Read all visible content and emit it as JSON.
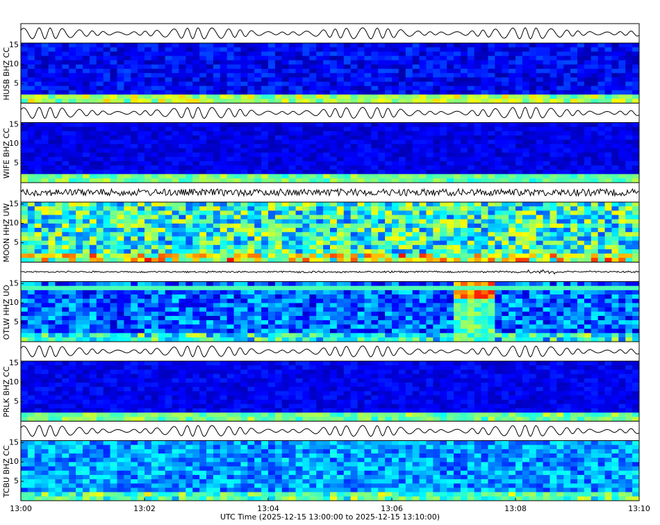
{
  "chart_data": {
    "type": "spectrogram",
    "xlabel": "UTC Time (2025-12-15 13:00:00 to 2025-12-15 13:10:00)",
    "xlim": [
      0,
      10
    ],
    "xticks": [
      {
        "value": 0,
        "label": "13:00"
      },
      {
        "value": 2,
        "label": "13:02"
      },
      {
        "value": 4,
        "label": "13:04"
      },
      {
        "value": 6,
        "label": "13:06"
      },
      {
        "value": 8,
        "label": "13:08"
      },
      {
        "value": 10,
        "label": "13:10"
      }
    ],
    "panels": [
      {
        "label": "HUSB BHZ CC",
        "ylim": [
          0,
          15.5
        ],
        "yticks": [
          5,
          10,
          15
        ]
      },
      {
        "label": "WIFE BHZ CC",
        "ylim": [
          0,
          15.5
        ],
        "yticks": [
          5,
          10,
          15
        ]
      },
      {
        "label": "MOON HHZ UW",
        "ylim": [
          0,
          15.5
        ],
        "yticks": [
          5,
          10,
          15
        ]
      },
      {
        "label": "OTLW HHZ UO",
        "ylim": [
          0,
          15.5
        ],
        "yticks": [
          5,
          10,
          15
        ]
      },
      {
        "label": "PRLK BHZ CC",
        "ylim": [
          0,
          15.5
        ],
        "yticks": [
          5,
          10,
          15
        ]
      },
      {
        "label": "TCBU BHZ CC",
        "ylim": [
          0,
          15.5
        ],
        "yticks": [
          5,
          10,
          15
        ]
      }
    ]
  }
}
